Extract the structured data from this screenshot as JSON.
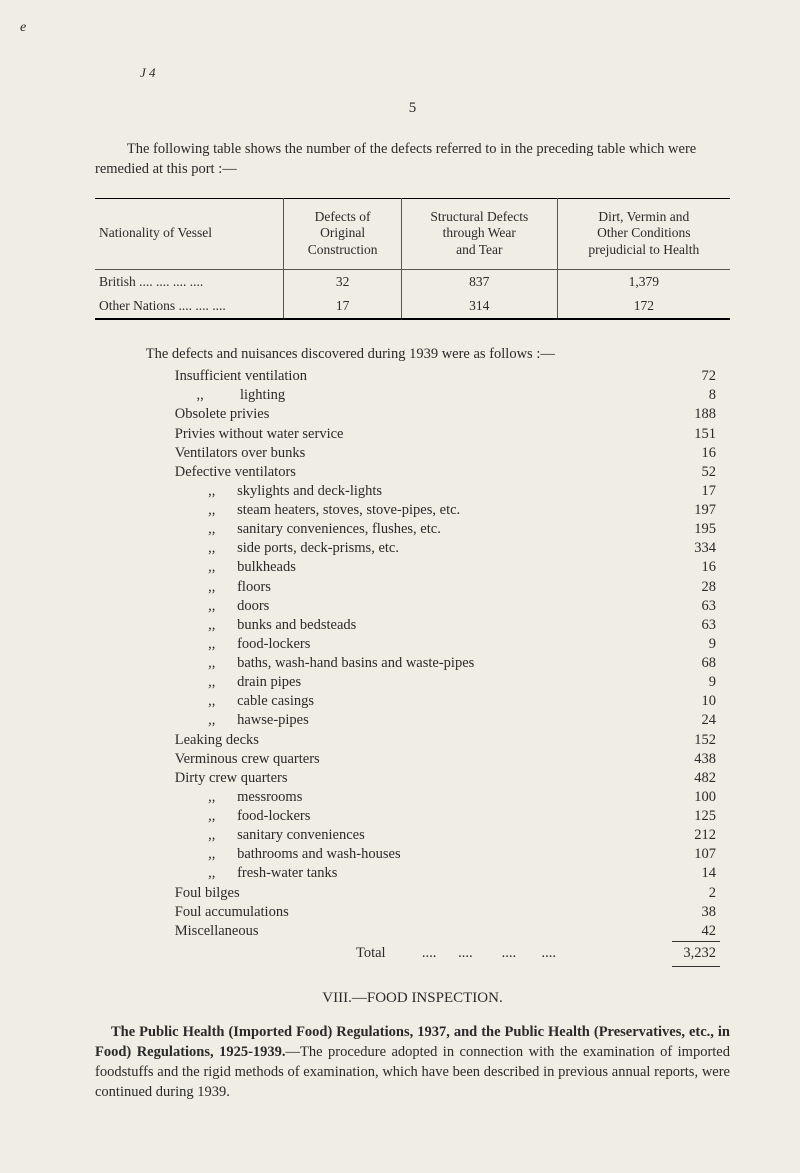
{
  "page_number": "5",
  "marks": {
    "m1": "e",
    "m2": "J    4"
  },
  "intro": "The following table shows the number of the defects referred to in the preceding table which were remedied at this port :—",
  "table": {
    "columns": [
      "Nationality of Vessel",
      "Defects of\nOriginal\nConstruction",
      "Structural Defects\nthrough Wear\nand Tear",
      "Dirt, Vermin and\nOther Conditions\nprejudicial to Health"
    ],
    "rows": [
      [
        "British .... .... .... ....",
        "32",
        "837",
        "1,379"
      ],
      [
        "Other Nations .... .... ....",
        "17",
        "314",
        "172"
      ]
    ]
  },
  "defects_intro": "The defects and nuisances discovered during 1939 were as follows :—",
  "defects": [
    {
      "label": "Insufficient ventilation",
      "value": "72",
      "indent": 0
    },
    {
      "label": "      ,,          lighting",
      "value": "8",
      "indent": 0
    },
    {
      "label": "Obsolete privies",
      "value": "188",
      "indent": 0
    },
    {
      "label": "Privies without water service",
      "value": "151",
      "indent": 0
    },
    {
      "label": "Ventilators over bunks",
      "value": "16",
      "indent": 0
    },
    {
      "label": "Defective ventilators",
      "value": "52",
      "indent": 0
    },
    {
      "label": ",,      skylights and deck-lights",
      "value": "17",
      "indent": 1
    },
    {
      "label": ",,      steam heaters, stoves, stove-pipes, etc.",
      "value": "197",
      "indent": 1
    },
    {
      "label": ",,      sanitary conveniences, flushes, etc.",
      "value": "195",
      "indent": 1
    },
    {
      "label": ",,      side ports, deck-prisms, etc.",
      "value": "334",
      "indent": 1
    },
    {
      "label": ",,      bulkheads",
      "value": "16",
      "indent": 1
    },
    {
      "label": ",,      floors",
      "value": "28",
      "indent": 1
    },
    {
      "label": ",,      doors",
      "value": "63",
      "indent": 1
    },
    {
      "label": ",,      bunks and bedsteads",
      "value": "63",
      "indent": 1
    },
    {
      "label": ",,      food-lockers",
      "value": "9",
      "indent": 1
    },
    {
      "label": ",,      baths, wash-hand basins and waste-pipes",
      "value": "68",
      "indent": 1
    },
    {
      "label": ",,      drain pipes",
      "value": "9",
      "indent": 1
    },
    {
      "label": ",,      cable casings",
      "value": "10",
      "indent": 1
    },
    {
      "label": ",,      hawse-pipes",
      "value": "24",
      "indent": 1
    },
    {
      "label": "Leaking decks",
      "value": "152",
      "indent": 0
    },
    {
      "label": "Verminous crew quarters",
      "value": "438",
      "indent": 0
    },
    {
      "label": "Dirty crew quarters",
      "value": "482",
      "indent": 0
    },
    {
      "label": ",,      messrooms",
      "value": "100",
      "indent": 1
    },
    {
      "label": ",,      food-lockers",
      "value": "125",
      "indent": 1
    },
    {
      "label": ",,      sanitary conveniences",
      "value": "212",
      "indent": 1
    },
    {
      "label": ",,      bathrooms and wash-houses",
      "value": "107",
      "indent": 1
    },
    {
      "label": ",,      fresh-water tanks",
      "value": "14",
      "indent": 1
    },
    {
      "label": "Foul bilges",
      "value": "2",
      "indent": 0
    },
    {
      "label": "Foul accumulations",
      "value": "38",
      "indent": 0
    },
    {
      "label": "Miscellaneous",
      "value": "42",
      "indent": 0
    }
  ],
  "total_label": "Total",
  "total_value": "3,232",
  "section8_head": "VIII.—FOOD INSPECTION.",
  "footnote_bold1": "The Public Health (Imported Food) Regulations, 1937, and the Public Health (Preservatives, etc., in Food) Regulations, 1925-1939.",
  "footnote_rest": "—The procedure adopted in connection with the examination of imported foodstuffs and the rigid methods of examination, which have been described in previous annual reports, were continued during 1939."
}
